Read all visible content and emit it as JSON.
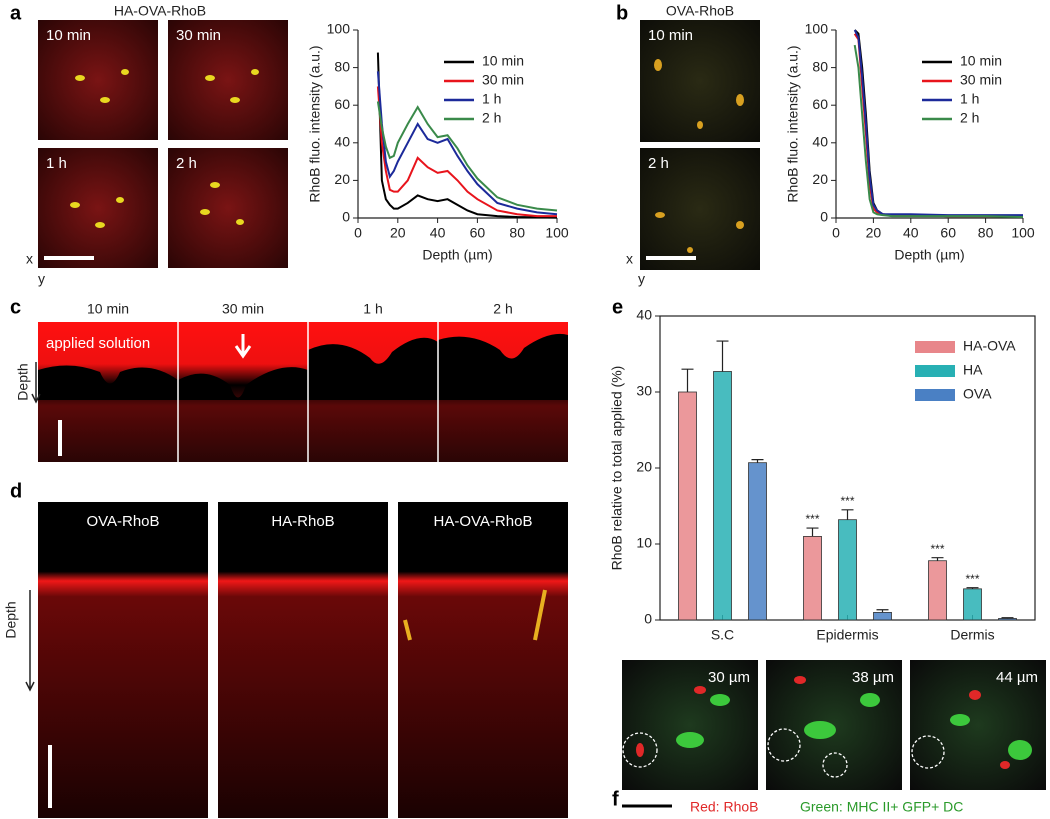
{
  "panel_labels": [
    "a",
    "b",
    "c",
    "d",
    "e",
    "f"
  ],
  "panel_a": {
    "title": "HA-OVA-RhoB",
    "images": [
      "10 min",
      "30 min",
      "1 h",
      "2 h"
    ],
    "axis_x": "x",
    "axis_y": "y"
  },
  "panel_b": {
    "title": "OVA-RhoB",
    "images": [
      "10 min",
      "2 h"
    ],
    "axis_x": "x",
    "axis_y": "y"
  },
  "panel_c": {
    "images": [
      "10 min",
      "30 min",
      "1 h",
      "2 h"
    ],
    "annotation": "applied solution",
    "depth": "Depth"
  },
  "panel_d": {
    "images": [
      "OVA-RhoB",
      "HA-RhoB",
      "HA-OVA-RhoB"
    ],
    "depth": "Depth"
  },
  "panel_f": {
    "images": [
      "30 µm",
      "38 µm",
      "44 µm"
    ],
    "legend": [
      "Red: RhoB",
      "Green: MHC II+ GFP+ DC"
    ]
  },
  "chart_data": [
    {
      "type": "line",
      "xlabel": "Depth (µm)",
      "ylabel": "RhoB fluo. intensity (a.u.)",
      "x": [
        10,
        12,
        14,
        16,
        18,
        20,
        25,
        30,
        35,
        40,
        45,
        50,
        55,
        60,
        70,
        80,
        90,
        100
      ],
      "series": [
        {
          "name": "10 min",
          "color": "#000000",
          "values": [
            88,
            20,
            10,
            7,
            5,
            5,
            8,
            12,
            10,
            9,
            10,
            7,
            4,
            2,
            1,
            0.5,
            0.3,
            0.2
          ]
        },
        {
          "name": "30 min",
          "color": "#e8141c",
          "values": [
            70,
            40,
            25,
            15,
            14,
            14,
            20,
            32,
            27,
            24,
            25,
            20,
            14,
            10,
            4,
            2,
            1,
            1
          ]
        },
        {
          "name": "1 h",
          "color": "#1c2a9a",
          "values": [
            78,
            50,
            30,
            22,
            25,
            30,
            40,
            50,
            42,
            40,
            42,
            33,
            25,
            18,
            8,
            5,
            3,
            2
          ]
        },
        {
          "name": "2 h",
          "color": "#3a8a4a",
          "values": [
            62,
            48,
            38,
            32,
            33,
            40,
            50,
            59,
            50,
            43,
            44,
            37,
            28,
            21,
            11,
            7,
            5,
            4
          ]
        }
      ],
      "xlim": [
        0,
        100
      ],
      "xticks": [
        0,
        20,
        40,
        60,
        80,
        100
      ],
      "ylim": [
        0,
        100
      ],
      "yticks": [
        0,
        20,
        40,
        60,
        80,
        100
      ],
      "legend": "top-right"
    },
    {
      "type": "line",
      "xlabel": "Depth (µm)",
      "ylabel": "RhoB fluo. intensity (a.u.)",
      "x": [
        10,
        12,
        14,
        16,
        18,
        20,
        22,
        25,
        30,
        40,
        60,
        80,
        100
      ],
      "series": [
        {
          "name": "10 min",
          "color": "#000000",
          "values": [
            100,
            98,
            80,
            55,
            25,
            8,
            4,
            2,
            1.5,
            1.5,
            1,
            1,
            1
          ]
        },
        {
          "name": "30 min",
          "color": "#e8141c",
          "values": [
            98,
            95,
            70,
            45,
            18,
            5,
            3,
            2,
            1.5,
            1.5,
            1,
            1,
            1
          ]
        },
        {
          "name": "1 h",
          "color": "#1c2a9a",
          "values": [
            100,
            96,
            75,
            50,
            22,
            7,
            4,
            2,
            2,
            2,
            1.5,
            1.5,
            1.5
          ]
        },
        {
          "name": "2 h",
          "color": "#3a8a4a",
          "values": [
            92,
            80,
            55,
            30,
            10,
            3,
            2,
            1.5,
            1,
            1,
            1,
            1,
            0.5
          ]
        }
      ],
      "xlim": [
        0,
        100
      ],
      "xticks": [
        0,
        20,
        40,
        60,
        80,
        100
      ],
      "ylim": [
        0,
        100
      ],
      "yticks": [
        0,
        20,
        40,
        60,
        80,
        100
      ],
      "legend": "top-right"
    },
    {
      "type": "bar",
      "ylabel": "RhoB relative to total applied (%)",
      "categories": [
        "S.C",
        "Epidermis",
        "Dermis"
      ],
      "series": [
        {
          "name": "HA-OVA",
          "color": "#e8868a",
          "values": [
            30,
            11,
            7.8
          ],
          "errors": [
            3,
            1.1,
            0.4
          ],
          "significance": [
            null,
            "***",
            "***"
          ]
        },
        {
          "name": "HA",
          "color": "#28b0b4",
          "values": [
            32.7,
            13.2,
            4.1
          ],
          "errors": [
            4,
            1.3,
            0.15
          ],
          "significance": [
            null,
            "***",
            "***"
          ]
        },
        {
          "name": "OVA",
          "color": "#4a80c4",
          "values": [
            20.7,
            1,
            0.2
          ],
          "errors": [
            0.4,
            0.35,
            0.1
          ],
          "significance": [
            null,
            null,
            null
          ]
        }
      ],
      "ylim": [
        0,
        40
      ],
      "yticks": [
        0,
        10,
        20,
        30,
        40
      ],
      "legend": "top-right"
    }
  ]
}
